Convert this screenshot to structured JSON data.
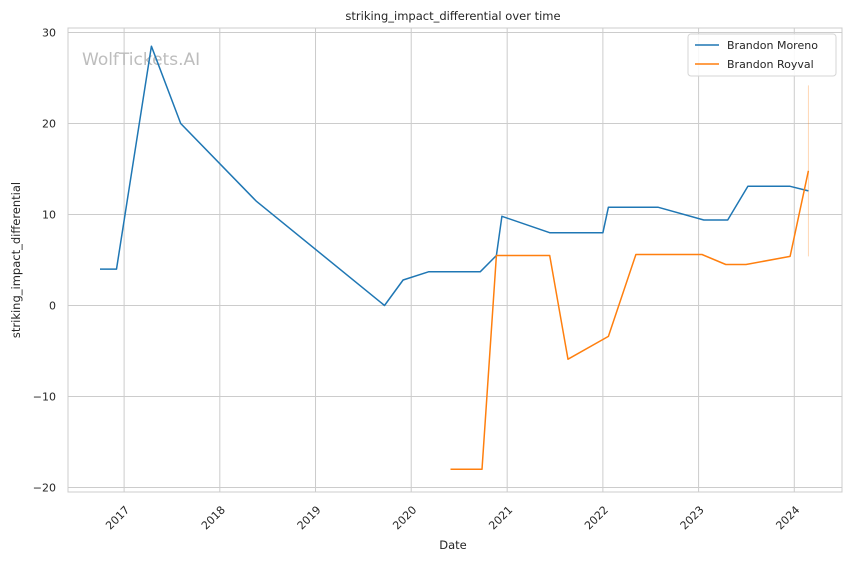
{
  "chart_data": {
    "type": "line",
    "title": "striking_impact_differential over time",
    "xlabel": "Date",
    "ylabel": "striking_impact_differential",
    "xlim": [
      "2016-06-01",
      "2024-07-01"
    ],
    "ylim": [
      -20.5,
      30.5
    ],
    "x_ticks": [
      {
        "date": "2017-01-01",
        "label": "2017"
      },
      {
        "date": "2018-01-01",
        "label": "2018"
      },
      {
        "date": "2019-01-01",
        "label": "2019"
      },
      {
        "date": "2020-01-01",
        "label": "2020"
      },
      {
        "date": "2021-01-01",
        "label": "2021"
      },
      {
        "date": "2022-01-01",
        "label": "2022"
      },
      {
        "date": "2023-01-01",
        "label": "2023"
      },
      {
        "date": "2024-01-01",
        "label": "2024"
      }
    ],
    "y_ticks": [
      {
        "value": 30,
        "label": "30"
      },
      {
        "value": 20,
        "label": "20"
      },
      {
        "value": 10,
        "label": "10"
      },
      {
        "value": 0,
        "label": "0"
      },
      {
        "value": -10,
        "label": "−10"
      },
      {
        "value": -20,
        "label": "−20"
      }
    ],
    "grid": true,
    "legend_position": "top-right",
    "series": [
      {
        "name": "Brandon Moreno",
        "color": "#1f77b4",
        "points": [
          {
            "x": "2016-10-01",
            "y": 4.0
          },
          {
            "x": "2016-12-03",
            "y": 4.0
          },
          {
            "x": "2017-04-15",
            "y": 28.5
          },
          {
            "x": "2017-08-05",
            "y": 20.0
          },
          {
            "x": "2018-05-19",
            "y": 11.5
          },
          {
            "x": "2019-09-21",
            "y": 0.0
          },
          {
            "x": "2019-12-01",
            "y": 2.8
          },
          {
            "x": "2020-03-07",
            "y": 3.7
          },
          {
            "x": "2020-09-20",
            "y": 3.7
          },
          {
            "x": "2020-11-21",
            "y": 5.5
          },
          {
            "x": "2020-12-12",
            "y": 9.8
          },
          {
            "x": "2021-06-12",
            "y": 8.0
          },
          {
            "x": "2022-01-01",
            "y": 8.0
          },
          {
            "x": "2022-01-22",
            "y": 10.8
          },
          {
            "x": "2022-07-30",
            "y": 10.8
          },
          {
            "x": "2023-01-21",
            "y": 9.4
          },
          {
            "x": "2023-04-22",
            "y": 9.4
          },
          {
            "x": "2023-07-08",
            "y": 13.1
          },
          {
            "x": "2023-12-16",
            "y": 13.1
          },
          {
            "x": "2024-02-24",
            "y": 12.6
          }
        ]
      },
      {
        "name": "Brandon Royval",
        "color": "#ff7f0e",
        "points": [
          {
            "x": "2020-05-30",
            "y": -18.0
          },
          {
            "x": "2020-09-27",
            "y": -18.0
          },
          {
            "x": "2020-11-21",
            "y": 5.5
          },
          {
            "x": "2021-06-12",
            "y": 5.5
          },
          {
            "x": "2021-08-21",
            "y": -5.9
          },
          {
            "x": "2022-01-22",
            "y": -3.4
          },
          {
            "x": "2022-05-07",
            "y": 5.6
          },
          {
            "x": "2023-01-14",
            "y": 5.6
          },
          {
            "x": "2023-04-15",
            "y": 4.5
          },
          {
            "x": "2023-07-01",
            "y": 4.5
          },
          {
            "x": "2023-12-16",
            "y": 5.4
          },
          {
            "x": "2024-02-24",
            "y": 14.8
          }
        ],
        "error_band": {
          "x": "2024-02-24",
          "low": 5.4,
          "high": 24.2
        }
      }
    ],
    "watermark": "WolfTickets.AI"
  }
}
